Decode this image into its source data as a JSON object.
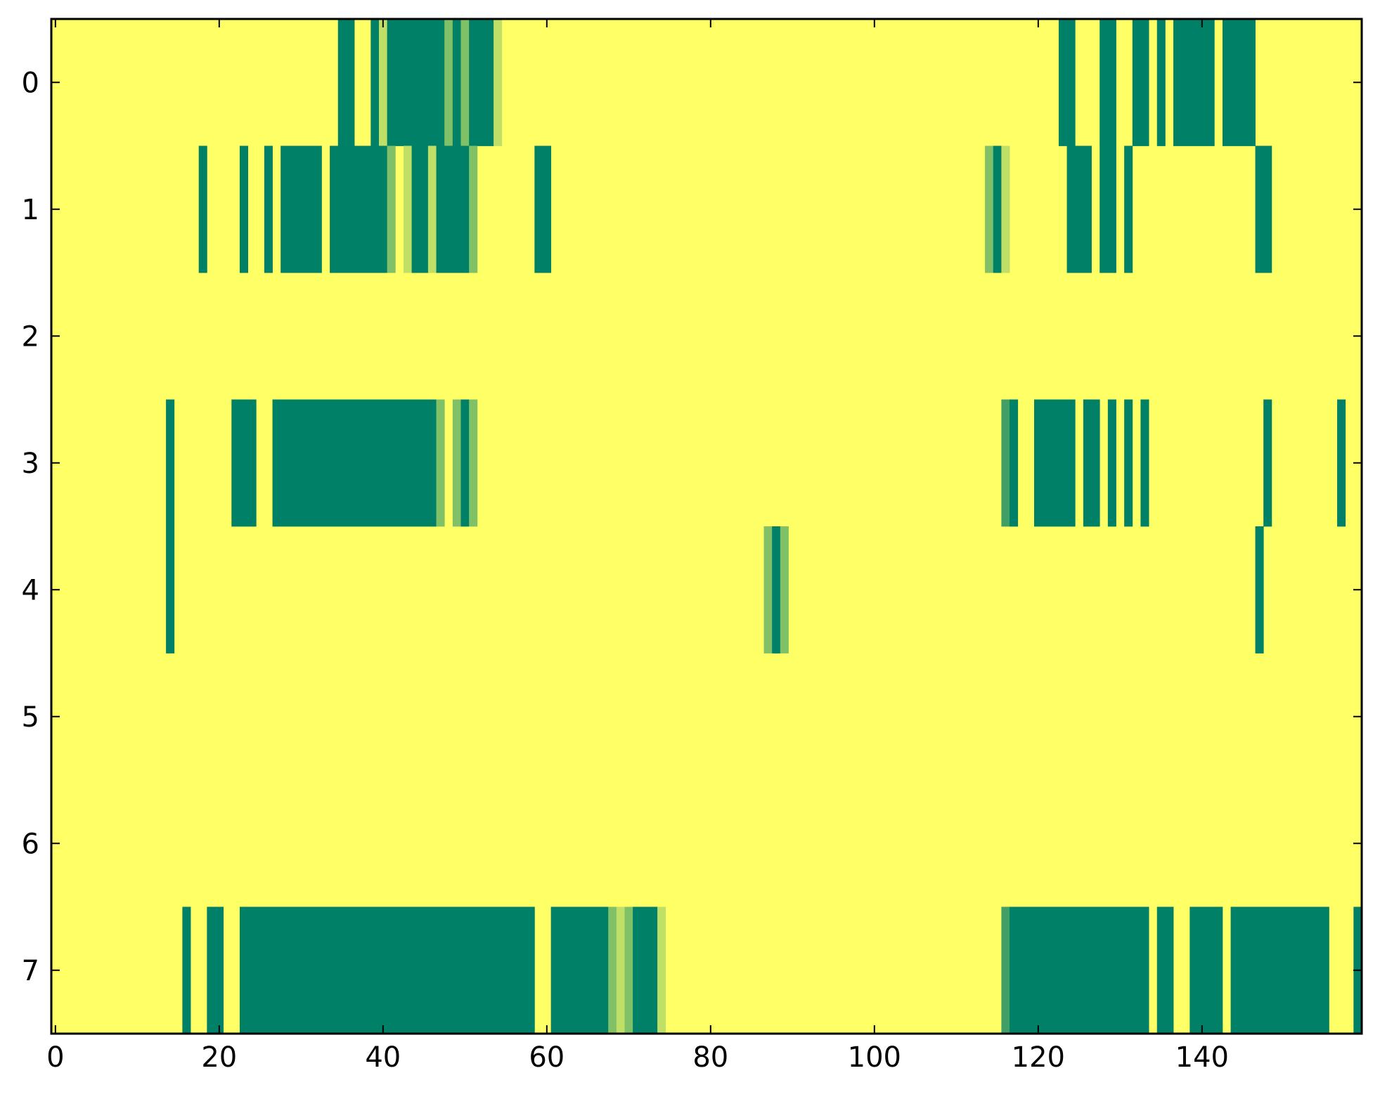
{
  "chart_data": {
    "type": "heatmap",
    "title": "",
    "xlabel": "",
    "ylabel": "",
    "xlim": [
      -0.5,
      159.5
    ],
    "ylim": [
      -0.5,
      7.5
    ],
    "x_ticks": [
      "0",
      "20",
      "40",
      "60",
      "80",
      "100",
      "120",
      "140"
    ],
    "y_ticks": [
      "0",
      "1",
      "2",
      "3",
      "4",
      "5",
      "6",
      "7"
    ],
    "grid": false,
    "legend": "none",
    "colormap": "summer",
    "colors": {
      "0.00": "#008066",
      "0.25": "#409f66",
      "0.50": "#80c066",
      "0.75": "#c0df66",
      "1.00": "#ffff66"
    },
    "background_value": 1.0,
    "rows": [
      {
        "row": 0,
        "runs": [
          [
            35,
            36,
            0
          ],
          [
            39,
            39,
            0
          ],
          [
            40,
            40,
            0.75
          ],
          [
            41,
            47,
            0
          ],
          [
            48,
            48,
            0.5
          ],
          [
            49,
            49,
            0
          ],
          [
            50,
            50,
            0.5
          ],
          [
            51,
            53,
            0
          ],
          [
            54,
            54,
            0.75
          ],
          [
            123,
            124,
            0
          ],
          [
            128,
            129,
            0
          ],
          [
            132,
            133,
            0
          ],
          [
            135,
            135,
            0
          ],
          [
            137,
            141,
            0
          ],
          [
            143,
            146,
            0
          ]
        ]
      },
      {
        "row": 1,
        "runs": [
          [
            18,
            18,
            0
          ],
          [
            23,
            23,
            0
          ],
          [
            26,
            26,
            0
          ],
          [
            28,
            32,
            0
          ],
          [
            34,
            40,
            0
          ],
          [
            41,
            41,
            0.5
          ],
          [
            43,
            43,
            0.75
          ],
          [
            44,
            45,
            0
          ],
          [
            46,
            46,
            0.75
          ],
          [
            47,
            47,
            0
          ],
          [
            48,
            50,
            0
          ],
          [
            51,
            51,
            0.5
          ],
          [
            59,
            60,
            0
          ],
          [
            114,
            114,
            0.5
          ],
          [
            115,
            115,
            0
          ],
          [
            116,
            116,
            0.75
          ],
          [
            124,
            126,
            0
          ],
          [
            128,
            129,
            0
          ],
          [
            131,
            131,
            0
          ],
          [
            147,
            148,
            0
          ]
        ]
      },
      {
        "row": 2,
        "runs": []
      },
      {
        "row": 3,
        "runs": [
          [
            14,
            14,
            0
          ],
          [
            22,
            24,
            0
          ],
          [
            27,
            46,
            0
          ],
          [
            47,
            47,
            0.5
          ],
          [
            49,
            49,
            0.5
          ],
          [
            50,
            50,
            0
          ],
          [
            51,
            51,
            0.5
          ],
          [
            116,
            116,
            0.25
          ],
          [
            117,
            117,
            0
          ],
          [
            120,
            124,
            0
          ],
          [
            126,
            127,
            0
          ],
          [
            129,
            129,
            0
          ],
          [
            131,
            131,
            0
          ],
          [
            133,
            133,
            0
          ],
          [
            148,
            148,
            0
          ],
          [
            157,
            157,
            0
          ]
        ]
      },
      {
        "row": 4,
        "runs": [
          [
            14,
            14,
            0
          ],
          [
            87,
            87,
            0.5
          ],
          [
            88,
            88,
            0
          ],
          [
            89,
            89,
            0.5
          ],
          [
            147,
            147,
            0
          ]
        ]
      },
      {
        "row": 5,
        "runs": []
      },
      {
        "row": 6,
        "runs": []
      },
      {
        "row": 7,
        "runs": [
          [
            16,
            16,
            0
          ],
          [
            19,
            20,
            0
          ],
          [
            23,
            58,
            0
          ],
          [
            61,
            67,
            0
          ],
          [
            68,
            68,
            0.5
          ],
          [
            69,
            69,
            0.75
          ],
          [
            70,
            70,
            0.5
          ],
          [
            71,
            73,
            0
          ],
          [
            74,
            74,
            0.75
          ],
          [
            116,
            116,
            0.25
          ],
          [
            117,
            133,
            0
          ],
          [
            135,
            136,
            0
          ],
          [
            139,
            142,
            0
          ],
          [
            144,
            155,
            0
          ],
          [
            159,
            159,
            0
          ]
        ]
      }
    ]
  }
}
